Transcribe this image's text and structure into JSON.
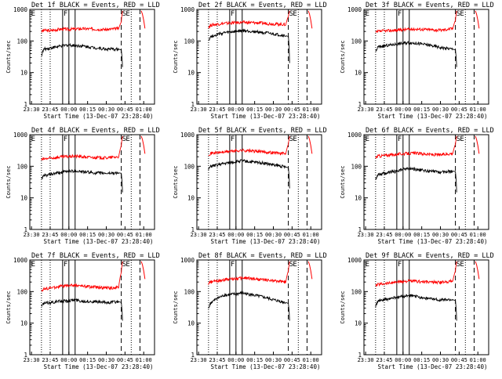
{
  "figure": {
    "xlabel": "Start Time (13-Dec-07 23:28:40)",
    "ylabel": "Counts/sec",
    "xticks": [
      "23:30",
      "23:45",
      "00:00",
      "00:15",
      "00:30",
      "00:45",
      "01:00"
    ],
    "yticks": [
      "1",
      "10",
      "100",
      "1000"
    ],
    "colors": {
      "events": "#000000",
      "lld": "#ff0000",
      "axes": "#000000"
    }
  },
  "chart_data": [
    {
      "type": "line",
      "title": "Det 1f BLACK = Events, RED = LLD",
      "markers": [
        "E",
        "F",
        "S",
        "E"
      ],
      "x": [
        "23:38",
        "23:40",
        "23:45",
        "23:50",
        "23:55",
        "00:00",
        "00:05",
        "00:10",
        "00:20",
        "00:30",
        "00:40",
        "00:42",
        "00:43"
      ],
      "series": [
        {
          "name": "LLD",
          "color": "#ff0000",
          "values": [
            200,
            220,
            210,
            230,
            240,
            235,
            240,
            245,
            240,
            230,
            250,
            400,
            900
          ]
        },
        {
          "name": "Events",
          "color": "#000000",
          "values": [
            35,
            55,
            60,
            65,
            70,
            75,
            72,
            70,
            62,
            55,
            55,
            52,
            15
          ]
        }
      ],
      "ylim": [
        1,
        1000
      ],
      "yscale": "log"
    },
    {
      "type": "line",
      "title": "Det 2f BLACK = Events, RED = LLD",
      "markers": [
        "F",
        "S",
        "E"
      ],
      "x": [
        "23:38",
        "23:40",
        "23:45",
        "23:50",
        "23:55",
        "00:00",
        "00:05",
        "00:10",
        "00:20",
        "00:30",
        "00:40",
        "00:42",
        "00:43"
      ],
      "series": [
        {
          "name": "LLD",
          "color": "#ff0000",
          "values": [
            280,
            320,
            340,
            360,
            370,
            380,
            390,
            385,
            370,
            350,
            330,
            600,
            900
          ]
        },
        {
          "name": "Events",
          "color": "#000000",
          "values": [
            110,
            140,
            160,
            180,
            190,
            200,
            210,
            205,
            190,
            165,
            145,
            140,
            20
          ]
        }
      ],
      "ylim": [
        1,
        1000
      ],
      "yscale": "log"
    },
    {
      "type": "line",
      "title": "Det 3f BLACK = Events, RED = LLD",
      "markers": [
        "E",
        "F",
        "S",
        "E"
      ],
      "x": [
        "23:38",
        "23:40",
        "23:45",
        "23:50",
        "23:55",
        "00:00",
        "00:05",
        "00:10",
        "00:20",
        "00:30",
        "00:40",
        "00:42",
        "00:43"
      ],
      "series": [
        {
          "name": "LLD",
          "color": "#ff0000",
          "values": [
            180,
            200,
            210,
            215,
            220,
            230,
            235,
            240,
            230,
            220,
            250,
            450,
            900
          ]
        },
        {
          "name": "Events",
          "color": "#000000",
          "values": [
            45,
            65,
            70,
            75,
            80,
            85,
            90,
            85,
            75,
            62,
            55,
            52,
            15
          ]
        }
      ],
      "ylim": [
        1,
        1000
      ],
      "yscale": "log"
    },
    {
      "type": "line",
      "title": "Det 4f BLACK = Events, RED = LLD",
      "markers": [
        "E",
        "F",
        "S",
        "E"
      ],
      "x": [
        "23:38",
        "23:40",
        "23:45",
        "23:50",
        "23:55",
        "00:00",
        "00:05",
        "00:10",
        "00:20",
        "00:30",
        "00:40",
        "00:42",
        "00:43"
      ],
      "series": [
        {
          "name": "LLD",
          "color": "#ff0000",
          "values": [
            160,
            170,
            180,
            190,
            200,
            205,
            210,
            200,
            190,
            185,
            200,
            450,
            900
          ]
        },
        {
          "name": "Events",
          "color": "#000000",
          "values": [
            40,
            50,
            55,
            60,
            65,
            70,
            72,
            68,
            62,
            60,
            62,
            60,
            15
          ]
        }
      ],
      "ylim": [
        1,
        1000
      ],
      "yscale": "log"
    },
    {
      "type": "line",
      "title": "Det 5f BLACK = Events, RED = LLD",
      "markers": [
        "F",
        "S",
        "E"
      ],
      "x": [
        "23:38",
        "23:40",
        "23:45",
        "23:50",
        "23:55",
        "00:00",
        "00:05",
        "00:10",
        "00:20",
        "00:30",
        "00:40",
        "00:42",
        "00:43"
      ],
      "series": [
        {
          "name": "LLD",
          "color": "#ff0000",
          "values": [
            240,
            260,
            270,
            280,
            300,
            310,
            320,
            310,
            290,
            270,
            250,
            500,
            900
          ]
        },
        {
          "name": "Events",
          "color": "#000000",
          "values": [
            80,
            100,
            110,
            120,
            130,
            140,
            150,
            140,
            130,
            110,
            95,
            90,
            20
          ]
        }
      ],
      "ylim": [
        1,
        1000
      ],
      "yscale": "log"
    },
    {
      "type": "line",
      "title": "Det 6f BLACK = Events, RED = LLD",
      "markers": [
        "E",
        "F",
        "S",
        "E"
      ],
      "x": [
        "23:38",
        "23:40",
        "23:45",
        "23:50",
        "23:55",
        "00:00",
        "00:05",
        "00:10",
        "00:20",
        "00:30",
        "00:40",
        "00:42",
        "00:43"
      ],
      "series": [
        {
          "name": "LLD",
          "color": "#ff0000",
          "values": [
            190,
            210,
            220,
            230,
            240,
            250,
            255,
            260,
            240,
            230,
            260,
            500,
            900
          ]
        },
        {
          "name": "Events",
          "color": "#000000",
          "values": [
            40,
            55,
            60,
            65,
            70,
            80,
            85,
            80,
            70,
            65,
            70,
            68,
            15
          ]
        }
      ],
      "ylim": [
        1,
        1000
      ],
      "yscale": "log"
    },
    {
      "type": "line",
      "title": "Det 7f BLACK = Events, RED = LLD",
      "markers": [
        "E",
        "F",
        "S",
        "E"
      ],
      "x": [
        "23:38",
        "23:40",
        "23:45",
        "23:50",
        "23:55",
        "00:00",
        "00:05",
        "00:10",
        "00:20",
        "00:30",
        "00:40",
        "00:42",
        "00:43"
      ],
      "series": [
        {
          "name": "LLD",
          "color": "#ff0000",
          "values": [
            110,
            120,
            130,
            140,
            150,
            155,
            160,
            150,
            140,
            130,
            135,
            400,
            900
          ]
        },
        {
          "name": "Events",
          "color": "#000000",
          "values": [
            35,
            42,
            45,
            48,
            50,
            52,
            55,
            50,
            48,
            45,
            48,
            45,
            12
          ]
        }
      ],
      "ylim": [
        1,
        1000
      ],
      "yscale": "log"
    },
    {
      "type": "line",
      "title": "Det 8f BLACK = Events, RED = LLD",
      "markers": [
        "F",
        "S",
        "E"
      ],
      "x": [
        "23:38",
        "23:40",
        "23:45",
        "23:50",
        "23:55",
        "00:00",
        "00:05",
        "00:10",
        "00:20",
        "00:30",
        "00:40",
        "00:42",
        "00:43"
      ],
      "series": [
        {
          "name": "LLD",
          "color": "#ff0000",
          "values": [
            180,
            200,
            220,
            240,
            250,
            260,
            270,
            265,
            240,
            220,
            200,
            450,
            900
          ]
        },
        {
          "name": "Events",
          "color": "#000000",
          "values": [
            30,
            45,
            60,
            75,
            80,
            85,
            90,
            82,
            70,
            55,
            45,
            42,
            12
          ]
        }
      ],
      "ylim": [
        1,
        1000
      ],
      "yscale": "log"
    },
    {
      "type": "line",
      "title": "Det 9f BLACK = Events, RED = LLD",
      "markers": [
        "E",
        "F",
        "S",
        "E"
      ],
      "x": [
        "23:38",
        "23:40",
        "23:45",
        "23:50",
        "23:55",
        "00:00",
        "00:05",
        "00:10",
        "00:20",
        "00:30",
        "00:40",
        "00:42",
        "00:43"
      ],
      "series": [
        {
          "name": "LLD",
          "color": "#ff0000",
          "values": [
            150,
            170,
            180,
            190,
            200,
            210,
            215,
            210,
            200,
            195,
            220,
            450,
            900
          ]
        },
        {
          "name": "Events",
          "color": "#000000",
          "values": [
            35,
            50,
            55,
            60,
            65,
            70,
            75,
            70,
            60,
            55,
            55,
            52,
            12
          ]
        }
      ],
      "ylim": [
        1,
        1000
      ],
      "yscale": "log"
    }
  ]
}
